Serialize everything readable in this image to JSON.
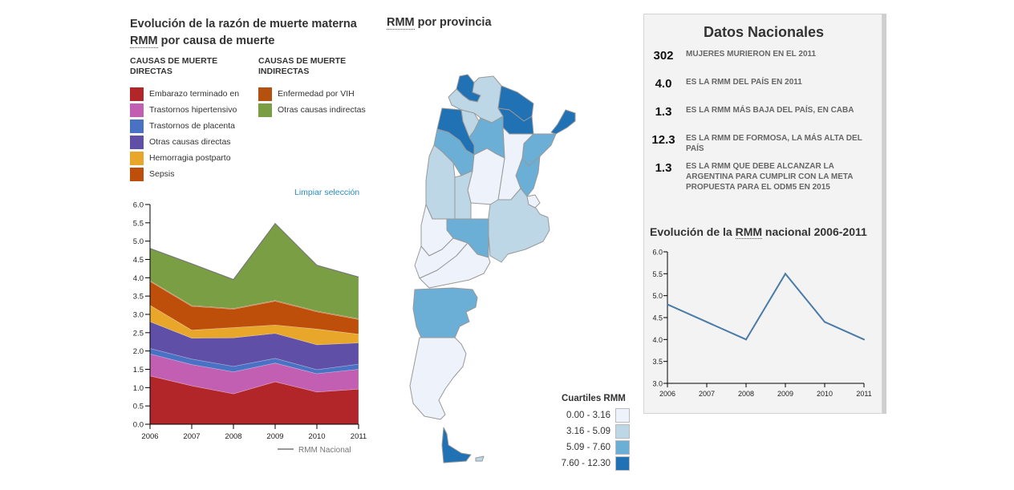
{
  "left_panel": {
    "title_part1": "Evolución de la razón de muerte materna",
    "title_abbr": "RMM",
    "title_part2": " por causa de muerte",
    "direct_heading": "CAUSAS DE MUERTE DIRECTAS",
    "indirect_heading": "CAUSAS DE MUERTE INDIRECTAS",
    "direct_causes": [
      {
        "label": "Embarazo terminado en",
        "color": "#b2262a"
      },
      {
        "label": "Trastornos hipertensivo",
        "color": "#c25fb2"
      },
      {
        "label": "Trastornos de placenta",
        "color": "#4a72c4"
      },
      {
        "label": "Otras causas directas",
        "color": "#5f4fa6"
      },
      {
        "label": "Hemorragia postparto",
        "color": "#e8a72a"
      },
      {
        "label": "Sepsis",
        "color": "#bd4f0b"
      }
    ],
    "indirect_causes": [
      {
        "label": "Enfermedad por VIH",
        "color": "#b5510f"
      },
      {
        "label": "Otras causas indirectas",
        "color": "#7a9e44"
      }
    ],
    "clear_selection": "Limpiar selección",
    "national_legend": "RMM Nacional"
  },
  "map_panel": {
    "title_abbr": "RMM",
    "title_rest": " por provincia",
    "quartiles_title": "Cuartiles RMM",
    "quartiles": [
      {
        "label": "0.00 - 3.16",
        "color": "#eef2fb"
      },
      {
        "label": "3.16 - 5.09",
        "color": "#bdd7e7"
      },
      {
        "label": "5.09 - 7.60",
        "color": "#6baed6"
      },
      {
        "label": "7.60 - 12.30",
        "color": "#2171b5"
      }
    ]
  },
  "national_panel": {
    "title": "Datos Nacionales",
    "facts": [
      {
        "value": "302",
        "text": "MUJERES MURIERON EN EL 2011"
      },
      {
        "value": "4.0",
        "text": "ES LA RMM DEL PAÍS EN 2011"
      },
      {
        "value": "1.3",
        "text": "ES LA RMM MÁS BAJA DEL PAÍS, EN CABA"
      },
      {
        "value": "12.3",
        "text": "ES LA RMM DE FORMOSA, LA MÁS ALTA DEL PAÍS"
      },
      {
        "value": "1.3",
        "text": "ES LA RMM QUE DEBE ALCANZAR LA ARGENTINA PARA CUMPLIR CON LA META PROPUESTA PARA EL ODM5 EN 2015"
      }
    ],
    "subtitle_part1": "Evolución de la ",
    "subtitle_abbr": "RMM",
    "subtitle_part2": " nacional 2006-2011"
  },
  "chart_data": [
    {
      "type": "area",
      "stacked": true,
      "title": "Evolución de la razón de muerte materna RMM por causa de muerte",
      "x": [
        2006,
        2007,
        2008,
        2009,
        2010,
        2011
      ],
      "x_ticks": [
        "2006",
        "2007",
        "2008",
        "2009",
        "2010",
        "2011"
      ],
      "y_ticks": [
        "0.0",
        "0.5",
        "1.0",
        "1.5",
        "2.0",
        "2.5",
        "3.0",
        "3.5",
        "4.0",
        "4.5",
        "5.0",
        "5.5",
        "6.0"
      ],
      "ylim": [
        0,
        6
      ],
      "series": [
        {
          "name": "Embarazo terminado en aborto",
          "color": "#b2262a",
          "values": [
            1.32,
            1.05,
            0.83,
            1.16,
            0.88,
            0.96
          ]
        },
        {
          "name": "Trastornos hipertensivos",
          "color": "#c25fb2",
          "values": [
            0.6,
            0.58,
            0.6,
            0.51,
            0.5,
            0.54
          ]
        },
        {
          "name": "Trastornos de placenta",
          "color": "#4a72c4",
          "values": [
            0.15,
            0.15,
            0.15,
            0.13,
            0.11,
            0.14
          ]
        },
        {
          "name": "Otras causas directas",
          "color": "#5f4fa6",
          "values": [
            0.73,
            0.57,
            0.78,
            0.68,
            0.68,
            0.58
          ]
        },
        {
          "name": "Hemorragia postparto",
          "color": "#e8a72a",
          "values": [
            0.45,
            0.22,
            0.28,
            0.23,
            0.43,
            0.24
          ]
        },
        {
          "name": "Sepsis",
          "color": "#bd4f0b",
          "values": [
            0.65,
            0.65,
            0.5,
            0.65,
            0.47,
            0.4
          ]
        },
        {
          "name": "Enfermedad por VIH",
          "color": "#b5510f",
          "values": [
            0.02,
            0.02,
            0.02,
            0.02,
            0.02,
            0.02
          ]
        },
        {
          "name": "Otras causas indirectas",
          "color": "#7a9e44",
          "values": [
            0.88,
            1.14,
            0.79,
            2.1,
            1.25,
            1.14
          ]
        }
      ],
      "legend": "RMM Nacional"
    },
    {
      "type": "line",
      "title": "Evolución de la RMM nacional 2006-2011",
      "x": [
        2006,
        2007,
        2008,
        2009,
        2010,
        2011
      ],
      "x_ticks": [
        "2006",
        "2007",
        "2008",
        "2009",
        "2010",
        "2011"
      ],
      "y_ticks": [
        "3.0",
        "3.5",
        "4.0",
        "4.5",
        "5.0",
        "5.5",
        "6.0"
      ],
      "ylim": [
        3,
        6
      ],
      "series": [
        {
          "name": "RMM nacional",
          "color": "#4a7ba7",
          "values": [
            4.8,
            4.4,
            4.0,
            5.5,
            4.4,
            4.0
          ]
        }
      ]
    }
  ]
}
